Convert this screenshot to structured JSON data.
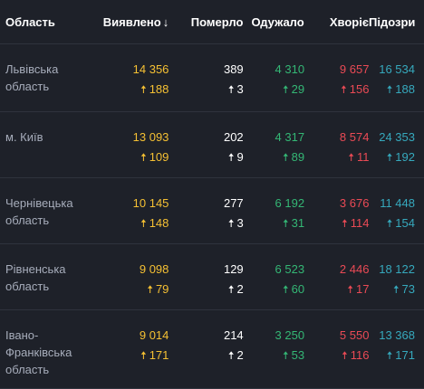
{
  "header": {
    "region": "Область",
    "detected": "Виявлено",
    "sort_icon": "↓",
    "died": "Померло",
    "recovered": "Одужало",
    "sick": "Хворіє",
    "suspected": "Підозри"
  },
  "colors": {
    "detected": "#f5c033",
    "died": "#ffffff",
    "recovered": "#34b775",
    "sick": "#ea4a55",
    "suspected": "#36a9bd",
    "background": "#1e2129"
  },
  "arrow_icon": "🠅",
  "rows": [
    {
      "region": "Львівська область",
      "detected": "14 356",
      "detected_delta": "188",
      "died": "389",
      "died_delta": "3",
      "recovered": "4 310",
      "recovered_delta": "29",
      "sick": "9 657",
      "sick_delta": "156",
      "suspected": "16 534",
      "suspected_delta": "188"
    },
    {
      "region": "м. Київ",
      "detected": "13 093",
      "detected_delta": "109",
      "died": "202",
      "died_delta": "9",
      "recovered": "4 317",
      "recovered_delta": "89",
      "sick": "8 574",
      "sick_delta": "11",
      "suspected": "24 353",
      "suspected_delta": "192"
    },
    {
      "region": "Чернівецька область",
      "detected": "10 145",
      "detected_delta": "148",
      "died": "277",
      "died_delta": "3",
      "recovered": "6 192",
      "recovered_delta": "31",
      "sick": "3 676",
      "sick_delta": "114",
      "suspected": "11 448",
      "suspected_delta": "154"
    },
    {
      "region": "Рівненська область",
      "detected": "9 098",
      "detected_delta": "79",
      "died": "129",
      "died_delta": "2",
      "recovered": "6 523",
      "recovered_delta": "60",
      "sick": "2 446",
      "sick_delta": "17",
      "suspected": "18 122",
      "suspected_delta": "73"
    },
    {
      "region": "Івано-Франківська область",
      "detected": "9 014",
      "detected_delta": "171",
      "died": "214",
      "died_delta": "2",
      "recovered": "3 250",
      "recovered_delta": "53",
      "sick": "5 550",
      "sick_delta": "116",
      "suspected": "13 368",
      "suspected_delta": "171"
    }
  ]
}
